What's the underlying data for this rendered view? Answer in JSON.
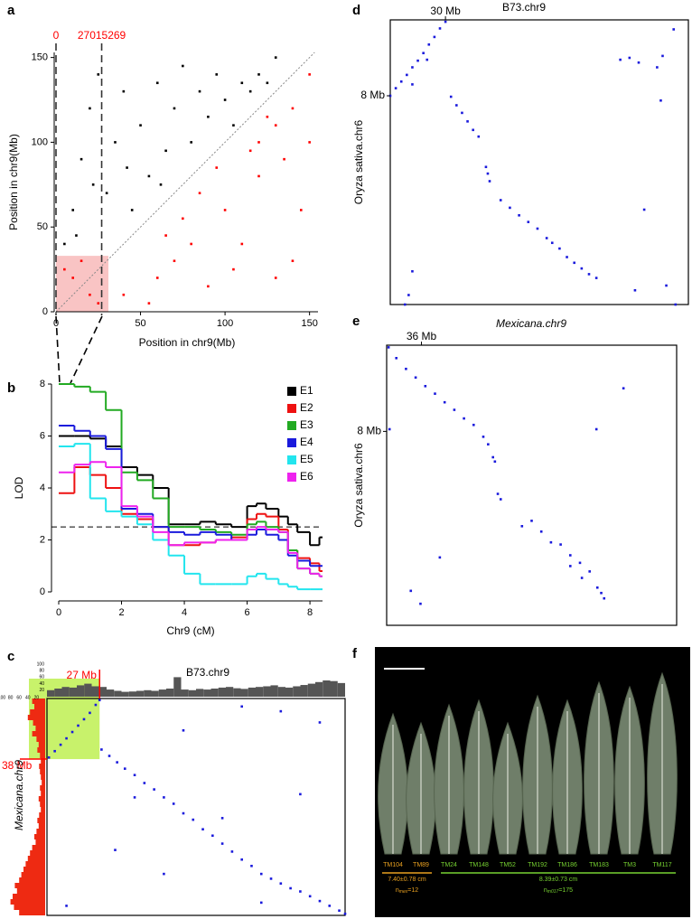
{
  "chart_data": [
    {
      "panel": "a",
      "type": "scatter",
      "xlabel": "Position in chr9(Mb)",
      "ylabel": "Position in chr9(Mb)",
      "xlim": [
        0,
        155
      ],
      "ylim": [
        0,
        153
      ],
      "xticks": [
        0,
        50,
        100,
        150
      ],
      "yticks": [
        0,
        50,
        100,
        150
      ],
      "markers": [
        {
          "value": 0,
          "label": "0"
        },
        {
          "value": 27.015269,
          "label": "27015269"
        }
      ],
      "marker_color": "#ff0000",
      "highlight": {
        "xlim": [
          0,
          31
        ],
        "ylim": [
          0,
          33
        ],
        "color": "#f9c4c4"
      },
      "series": [
        {
          "color": "#000000",
          "x": [
            5,
            10,
            15,
            20,
            25,
            30,
            35,
            40,
            45,
            50,
            55,
            60,
            65,
            70,
            75,
            80,
            85,
            90,
            95,
            100,
            105,
            110,
            115,
            120,
            125,
            130,
            12,
            22,
            42,
            62
          ],
          "values": [
            40,
            60,
            90,
            120,
            140,
            70,
            100,
            130,
            60,
            110,
            80,
            135,
            95,
            120,
            145,
            100,
            130,
            115,
            140,
            125,
            110,
            135,
            130,
            140,
            135,
            150,
            45,
            75,
            85,
            75
          ]
        },
        {
          "color": "#ff0000",
          "x": [
            40,
            60,
            80,
            100,
            120,
            130,
            140,
            150,
            70,
            90,
            110,
            125,
            135,
            145,
            55,
            75,
            95,
            115,
            105,
            85,
            65,
            150,
            130,
            120,
            140,
            10,
            20,
            25,
            5,
            15
          ],
          "values": [
            10,
            20,
            40,
            60,
            80,
            110,
            120,
            100,
            30,
            15,
            40,
            115,
            90,
            60,
            5,
            55,
            85,
            95,
            25,
            70,
            45,
            140,
            20,
            100,
            30,
            20,
            10,
            5,
            25,
            30
          ]
        }
      ]
    },
    {
      "panel": "b",
      "type": "step",
      "xlabel": "Chr9 (cM)",
      "ylabel": "LOD",
      "xlim": [
        0,
        8.4
      ],
      "ylim": [
        0,
        8
      ],
      "xticks": [
        0,
        2,
        4,
        6,
        8
      ],
      "yticks": [
        0,
        2,
        4,
        6,
        8
      ],
      "threshold": 2.5,
      "x": [
        0,
        0.5,
        1,
        1.5,
        2,
        2.5,
        3,
        3.5,
        4,
        4.5,
        5,
        5.5,
        6,
        6.3,
        6.6,
        7,
        7.3,
        7.6,
        8,
        8.3
      ],
      "series": [
        {
          "name": "E1",
          "color": "#000000",
          "values": [
            6.0,
            6.0,
            5.9,
            5.6,
            4.8,
            4.5,
            4.0,
            2.6,
            2.6,
            2.7,
            2.6,
            2.5,
            3.3,
            3.4,
            3.2,
            2.9,
            2.6,
            2.3,
            1.8,
            2.1
          ]
        },
        {
          "name": "E2",
          "color": "#ee1111",
          "values": [
            3.8,
            4.8,
            4.5,
            4.0,
            3.0,
            2.8,
            2.5,
            1.8,
            1.8,
            1.9,
            2.0,
            2.1,
            2.8,
            3.0,
            2.9,
            2.4,
            1.6,
            1.3,
            1.1,
            0.8
          ]
        },
        {
          "name": "E3",
          "color": "#22aa22",
          "values": [
            8.0,
            7.9,
            7.7,
            7.0,
            4.6,
            4.3,
            3.6,
            2.5,
            2.5,
            2.4,
            2.3,
            2.2,
            2.6,
            2.7,
            2.5,
            2.3,
            1.6,
            0.9,
            0.7,
            0.6
          ]
        },
        {
          "name": "E4",
          "color": "#1a1adc",
          "values": [
            6.4,
            6.2,
            6.0,
            5.5,
            3.2,
            3.0,
            2.5,
            2.3,
            2.2,
            2.3,
            2.2,
            2.0,
            2.2,
            2.4,
            2.2,
            2.0,
            1.4,
            1.2,
            1.0,
            1.0
          ]
        },
        {
          "name": "E5",
          "color": "#22e5ee",
          "values": [
            5.6,
            5.7,
            3.6,
            3.1,
            2.9,
            2.6,
            2.0,
            1.4,
            0.7,
            0.3,
            0.3,
            0.3,
            0.6,
            0.7,
            0.5,
            0.3,
            0.2,
            0.1,
            0.1,
            0.1
          ]
        },
        {
          "name": "E6",
          "color": "#ee22ee",
          "values": [
            4.6,
            4.9,
            5.0,
            4.8,
            3.3,
            2.9,
            2.3,
            1.8,
            1.9,
            1.9,
            2.0,
            2.0,
            2.4,
            2.5,
            2.4,
            2.3,
            1.5,
            0.9,
            0.7,
            0.6
          ]
        }
      ]
    },
    {
      "panel": "c",
      "type": "dotplot",
      "title": "B73.chr9",
      "ylabel": "Mexicana.chr9",
      "xlim": [
        0,
        153
      ],
      "ylim": [
        0,
        136
      ],
      "marker_color": "#ff0000",
      "xmarkers": [
        {
          "value": 27,
          "label": "27 Mb"
        }
      ],
      "ymarkers": [
        {
          "value": 38,
          "label": "38 Mb"
        }
      ],
      "highlight": {
        "xlim": [
          0,
          27
        ],
        "ylim": [
          0,
          38
        ],
        "color": "#b5ee3a"
      },
      "density_lim": [
        0,
        100
      ],
      "density_ticks": [
        20,
        40,
        60,
        80,
        100
      ],
      "x_density": {
        "color": "#555555",
        "values": [
          20,
          25,
          30,
          28,
          35,
          40,
          32,
          30,
          22,
          18,
          15,
          16,
          18,
          20,
          18,
          22,
          25,
          60,
          22,
          20,
          24,
          22,
          25,
          28,
          30,
          26,
          24,
          28,
          30,
          32,
          35,
          30,
          28,
          32,
          36,
          40,
          45,
          50,
          48,
          42
        ]
      },
      "y_density": {
        "color": "#ee2a12",
        "values": [
          30,
          25,
          35,
          40,
          28,
          22,
          30,
          20,
          15,
          18,
          12,
          10,
          14,
          12,
          10,
          8,
          12,
          10,
          15,
          12,
          10,
          14,
          18,
          15,
          20,
          25,
          22,
          30,
          35,
          40,
          45,
          50,
          55,
          60,
          70,
          65,
          75,
          80,
          72,
          60
        ]
      },
      "series": [
        {
          "color": "#1a1adc",
          "x": [
            1,
            4,
            7,
            10,
            13,
            16,
            19,
            22,
            25,
            27,
            28,
            32,
            36,
            40,
            45,
            50,
            55,
            60,
            65,
            70,
            75,
            80,
            85,
            90,
            95,
            100,
            105,
            110,
            115,
            120,
            125,
            130,
            135,
            140,
            145,
            150,
            153,
            70,
            100,
            120,
            140,
            45,
            60,
            90,
            130,
            10,
            110,
            35
          ],
          "values": [
            37,
            33,
            29,
            25,
            21,
            17,
            13,
            9,
            4,
            1,
            32,
            36,
            40,
            44,
            48,
            53,
            57,
            62,
            66,
            72,
            76,
            82,
            86,
            91,
            96,
            101,
            105,
            110,
            113,
            116,
            119,
            121,
            124,
            127,
            130,
            133,
            135,
            20,
            5,
            8,
            15,
            62,
            110,
            75,
            60,
            130,
            128,
            95
          ]
        }
      ]
    },
    {
      "panel": "d",
      "type": "dotplot",
      "title": "B73.chr9",
      "ylabel": "Oryza sativa.chr6",
      "xlim": [
        0,
        162
      ],
      "ylim": [
        0,
        30
      ],
      "marker_color": "#000000",
      "xmarkers": [
        {
          "value": 30,
          "label": "30 Mb"
        }
      ],
      "ymarkers": [
        {
          "value": 8,
          "label": "8 Mb"
        }
      ],
      "series": [
        {
          "color": "#1a1adc",
          "x": [
            0,
            3,
            6,
            9,
            12,
            15,
            18,
            21,
            24,
            27,
            30,
            20,
            12,
            33,
            36,
            39,
            42,
            45,
            48,
            52,
            53,
            54,
            60,
            65,
            70,
            75,
            80,
            85,
            88,
            92,
            96,
            100,
            104,
            108,
            112,
            125,
            130,
            135,
            145,
            148,
            154,
            147,
            138,
            12,
            10,
            133,
            150,
            155,
            8
          ],
          "values": [
            8,
            7.2,
            6.5,
            5.8,
            5,
            4.3,
            3.5,
            2.6,
            1.8,
            0.9,
            0.2,
            4.2,
            6.8,
            8.1,
            9,
            9.8,
            10.7,
            11.6,
            12.3,
            15.5,
            16.2,
            17,
            19,
            19.8,
            20.6,
            21.3,
            22,
            23,
            23.5,
            24.1,
            25,
            25.6,
            26.2,
            26.8,
            27.2,
            4.2,
            4,
            4.5,
            5,
            3.8,
            1,
            8.5,
            20,
            26.5,
            29,
            28.5,
            28,
            30,
            30
          ]
        }
      ]
    },
    {
      "panel": "e",
      "type": "dotplot",
      "title": "Mexicana.chr9",
      "ylabel": "Oryza sativa.chr6",
      "xlim": [
        0,
        300
      ],
      "ylim": [
        0,
        26
      ],
      "marker_color": "#000000",
      "xmarkers": [
        {
          "value": 36,
          "label": "36 Mb"
        }
      ],
      "ymarkers": [
        {
          "value": 8,
          "label": "8 Mb"
        }
      ],
      "series": [
        {
          "color": "#1a1adc",
          "x": [
            2,
            10,
            20,
            30,
            40,
            50,
            60,
            70,
            80,
            90,
            100,
            105,
            110,
            112,
            115,
            118,
            140,
            150,
            160,
            170,
            180,
            190,
            200,
            210,
            218,
            222,
            225,
            245,
            217,
            3,
            55,
            25,
            35,
            190,
            202
          ],
          "values": [
            0.2,
            1.2,
            2.2,
            3,
            3.8,
            4.5,
            5.3,
            6,
            6.8,
            7.4,
            8.5,
            9.2,
            10.4,
            10.8,
            13.8,
            14.3,
            16.8,
            16.3,
            17.3,
            18.3,
            18.5,
            19.5,
            20.2,
            21,
            22.5,
            23,
            23.5,
            4,
            7.8,
            7.8,
            19.7,
            22.8,
            24,
            20.5,
            21.6
          ]
        }
      ]
    }
  ],
  "photo": {
    "panel": "f",
    "groups": [
      {
        "color": "#e8a020",
        "labels": [
          "TM104",
          "TM89"
        ],
        "mean": "7.40±0.78 cm",
        "n": {
          "symbol": "n",
          "subscript": "mex",
          "text": "=12"
        }
      },
      {
        "color": "#77d232",
        "labels": [
          "TM24",
          "TM148",
          "TM52",
          "TM192",
          "TM186",
          "TM183",
          "TM3",
          "TM117"
        ],
        "mean": "8.39±0.73 cm",
        "n": {
          "symbol": "n",
          "subscript": "m017",
          "text": "=175"
        }
      }
    ]
  }
}
